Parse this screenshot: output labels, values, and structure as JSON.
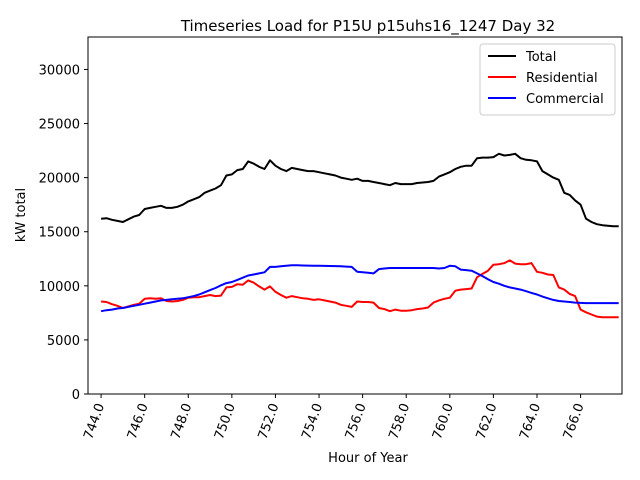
{
  "chart_data": {
    "type": "line",
    "title": "Timeseries Load for P15U p15uhs16_1247  Day 32",
    "xlabel": "Hour of Year",
    "ylabel": "kW total",
    "xlim": [
      743.4,
      767.9
    ],
    "ylim": [
      0,
      33000
    ],
    "xticks": [
      744,
      746,
      748,
      750,
      752,
      754,
      756,
      758,
      760,
      762,
      764,
      766
    ],
    "xtick_labels": [
      "744.0",
      "746.0",
      "748.0",
      "750.0",
      "752.0",
      "754.0",
      "756.0",
      "758.0",
      "760.0",
      "762.0",
      "764.0",
      "766.0"
    ],
    "yticks": [
      0,
      5000,
      10000,
      15000,
      20000,
      25000,
      30000
    ],
    "ytick_labels": [
      "0",
      "5000",
      "10000",
      "15000",
      "20000",
      "25000",
      "30000"
    ],
    "legend_position": "top-right",
    "x": [
      744.0,
      744.25,
      744.5,
      744.75,
      745.0,
      745.25,
      745.5,
      745.75,
      746.0,
      746.25,
      746.5,
      746.75,
      747.0,
      747.25,
      747.5,
      747.75,
      748.0,
      748.25,
      748.5,
      748.75,
      749.0,
      749.25,
      749.5,
      749.75,
      750.0,
      750.25,
      750.5,
      750.75,
      751.0,
      751.25,
      751.5,
      751.75,
      752.0,
      752.25,
      752.5,
      752.75,
      753.0,
      753.25,
      753.5,
      753.75,
      754.0,
      754.25,
      754.5,
      754.75,
      755.0,
      755.25,
      755.5,
      755.75,
      756.0,
      756.25,
      756.5,
      756.75,
      757.0,
      757.25,
      757.5,
      757.75,
      758.0,
      758.25,
      758.5,
      758.75,
      759.0,
      759.25,
      759.5,
      759.75,
      760.0,
      760.25,
      760.5,
      760.75,
      761.0,
      761.25,
      761.5,
      761.75,
      762.0,
      762.25,
      762.5,
      762.75,
      763.0,
      763.25,
      763.5,
      763.75,
      764.0,
      764.25,
      764.5,
      764.75,
      765.0,
      765.25,
      765.5,
      765.75,
      766.0,
      766.25,
      766.5,
      766.75,
      767.0,
      767.25,
      767.5,
      767.75
    ],
    "series": [
      {
        "name": "Total",
        "color": "#000000",
        "values": [
          16200,
          16250,
          16100,
          16000,
          15900,
          16150,
          16400,
          16550,
          17100,
          17200,
          17300,
          17400,
          17200,
          17200,
          17300,
          17500,
          17800,
          18000,
          18200,
          18600,
          18800,
          19000,
          19300,
          20200,
          20300,
          20700,
          20800,
          21500,
          21300,
          21000,
          20800,
          21600,
          21100,
          20800,
          20600,
          20900,
          20800,
          20700,
          20600,
          20600,
          20500,
          20400,
          20300,
          20200,
          20000,
          19900,
          19800,
          19900,
          19700,
          19700,
          19600,
          19500,
          19400,
          19300,
          19500,
          19400,
          19400,
          19400,
          19500,
          19550,
          19600,
          19700,
          20100,
          20300,
          20500,
          20800,
          21000,
          21100,
          21100,
          21800,
          21850,
          21850,
          21900,
          22200,
          22050,
          22100,
          22200,
          21800,
          21650,
          21600,
          21500,
          20600,
          20300,
          20000,
          19800,
          18600,
          18400,
          17900,
          17500,
          16200,
          15900,
          15700,
          15600,
          15550,
          15500,
          15500
        ]
      },
      {
        "name": "Residential",
        "color": "#ff0000",
        "values": [
          8550,
          8500,
          8300,
          8150,
          7950,
          8100,
          8250,
          8350,
          8800,
          8850,
          8800,
          8850,
          8600,
          8550,
          8600,
          8700,
          8900,
          8950,
          8950,
          9050,
          9150,
          9050,
          9100,
          9850,
          9900,
          10150,
          10100,
          10500,
          10300,
          9950,
          9650,
          9950,
          9450,
          9150,
          8900,
          9050,
          8950,
          8850,
          8800,
          8700,
          8750,
          8650,
          8550,
          8450,
          8250,
          8150,
          8050,
          8550,
          8500,
          8500,
          8450,
          7950,
          7850,
          7650,
          7800,
          7700,
          7700,
          7750,
          7850,
          7900,
          8000,
          8450,
          8650,
          8800,
          8900,
          9550,
          9650,
          9700,
          9750,
          10800,
          11100,
          11400,
          11950,
          12000,
          12100,
          12350,
          12050,
          12000,
          12000,
          12100,
          11300,
          11200,
          11050,
          11000,
          9850,
          9650,
          9250,
          9050,
          7800,
          7550,
          7350,
          7150,
          7100,
          7100,
          7100,
          7100
        ]
      },
      {
        "name": "Commercial",
        "color": "#0000ff",
        "values": [
          7650,
          7750,
          7800,
          7900,
          7950,
          8050,
          8150,
          8250,
          8350,
          8450,
          8550,
          8650,
          8700,
          8750,
          8800,
          8850,
          8950,
          9050,
          9200,
          9400,
          9600,
          9800,
          10050,
          10250,
          10350,
          10550,
          10750,
          10950,
          11050,
          11150,
          11250,
          11750,
          11750,
          11800,
          11850,
          11900,
          11900,
          11880,
          11870,
          11860,
          11850,
          11840,
          11830,
          11820,
          11800,
          11780,
          11750,
          11300,
          11250,
          11200,
          11150,
          11550,
          11600,
          11650,
          11650,
          11650,
          11650,
          11650,
          11650,
          11650,
          11650,
          11650,
          11600,
          11650,
          11850,
          11800,
          11500,
          11450,
          11400,
          11150,
          10900,
          10600,
          10350,
          10200,
          10000,
          9850,
          9750,
          9650,
          9500,
          9350,
          9200,
          9000,
          8850,
          8700,
          8600,
          8550,
          8500,
          8450,
          8420,
          8400,
          8400,
          8400,
          8400,
          8400,
          8400,
          8400
        ]
      }
    ]
  }
}
